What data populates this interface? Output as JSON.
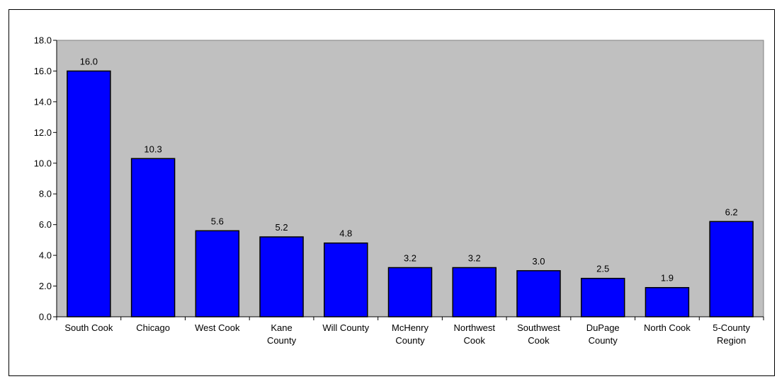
{
  "chart_data": {
    "type": "bar",
    "title": "",
    "xlabel": "",
    "ylabel": "",
    "ylim": [
      0,
      18
    ],
    "ytick_step": 2,
    "ytick_labels": [
      "0.0",
      "2.0",
      "4.0",
      "6.0",
      "8.0",
      "10.0",
      "12.0",
      "14.0",
      "16.0",
      "18.0"
    ],
    "grid": false,
    "legend": "none",
    "colors": {
      "bar_fill": "#0000FF",
      "bar_stroke": "#000000",
      "plot_bg": "#C0C0C0"
    },
    "categories": [
      [
        "South Cook"
      ],
      [
        "Chicago"
      ],
      [
        "West Cook"
      ],
      [
        "Kane",
        "County"
      ],
      [
        "Will County"
      ],
      [
        "McHenry",
        "County"
      ],
      [
        "Northwest",
        "Cook"
      ],
      [
        "Southwest",
        "Cook"
      ],
      [
        "DuPage",
        "County"
      ],
      [
        "North Cook"
      ],
      [
        "5-County",
        "Region"
      ]
    ],
    "values": [
      16.0,
      10.3,
      5.6,
      5.2,
      4.8,
      3.2,
      3.2,
      3.0,
      2.5,
      1.9,
      6.2
    ],
    "value_labels": [
      "16.0",
      "10.3",
      "5.6",
      "5.2",
      "4.8",
      "3.2",
      "3.2",
      "3.0",
      "2.5",
      "1.9",
      "6.2"
    ]
  }
}
